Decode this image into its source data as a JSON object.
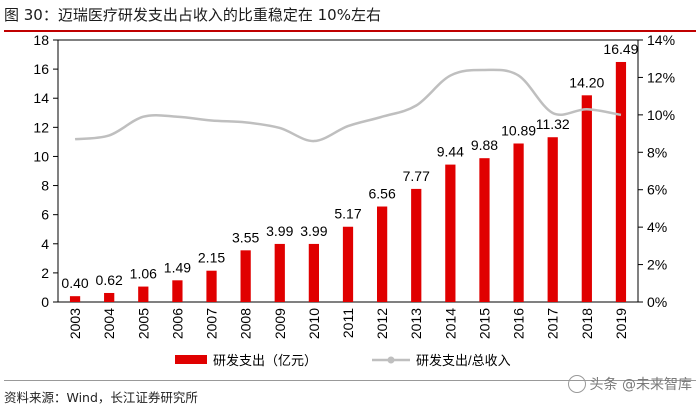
{
  "figure": {
    "title": "图 30：迈瑞医疗研发支出占收入的比重稳定在 10%左右",
    "source": "资料来源：Wind，长江证券研究所",
    "watermark": "头条 @未来智库"
  },
  "chart_data": {
    "type": "bar+line",
    "categories": [
      "2003",
      "2004",
      "2005",
      "2006",
      "2007",
      "2008",
      "2009",
      "2010",
      "2011",
      "2012",
      "2013",
      "2014",
      "2015",
      "2016",
      "2017",
      "2018",
      "2019"
    ],
    "series": [
      {
        "name": "研发支出（亿元）",
        "type": "bar",
        "axis": "left",
        "color": "#e00000",
        "values": [
          0.4,
          0.62,
          1.06,
          1.49,
          2.15,
          3.55,
          3.99,
          3.99,
          5.17,
          6.56,
          7.77,
          9.44,
          9.88,
          10.89,
          11.32,
          14.2,
          16.49
        ],
        "labels": [
          "0.40",
          "0.62",
          "1.06",
          "1.49",
          "2.15",
          "3.55",
          "3.99",
          "3.99",
          "5.17",
          "6.56",
          "7.77",
          "9.44",
          "9.88",
          "10.89",
          "11.32",
          "14.20",
          "16.49"
        ]
      },
      {
        "name": "研发支出/总收入",
        "type": "line",
        "axis": "right",
        "color": "#bfbfbf",
        "values": [
          8.7,
          8.9,
          9.9,
          9.9,
          9.7,
          9.6,
          9.3,
          8.6,
          9.4,
          9.9,
          10.5,
          12.1,
          12.4,
          12.1,
          10.1,
          10.3,
          10.0
        ]
      }
    ],
    "y_left": {
      "min": 0,
      "max": 18,
      "ticks": [
        "0",
        "2",
        "4",
        "6",
        "8",
        "10",
        "12",
        "14",
        "16",
        "18"
      ]
    },
    "y_right": {
      "min": 0,
      "max": 14,
      "ticks": [
        "0%",
        "2%",
        "4%",
        "6%",
        "8%",
        "10%",
        "12%",
        "14%"
      ]
    },
    "legend_position": "bottom"
  }
}
